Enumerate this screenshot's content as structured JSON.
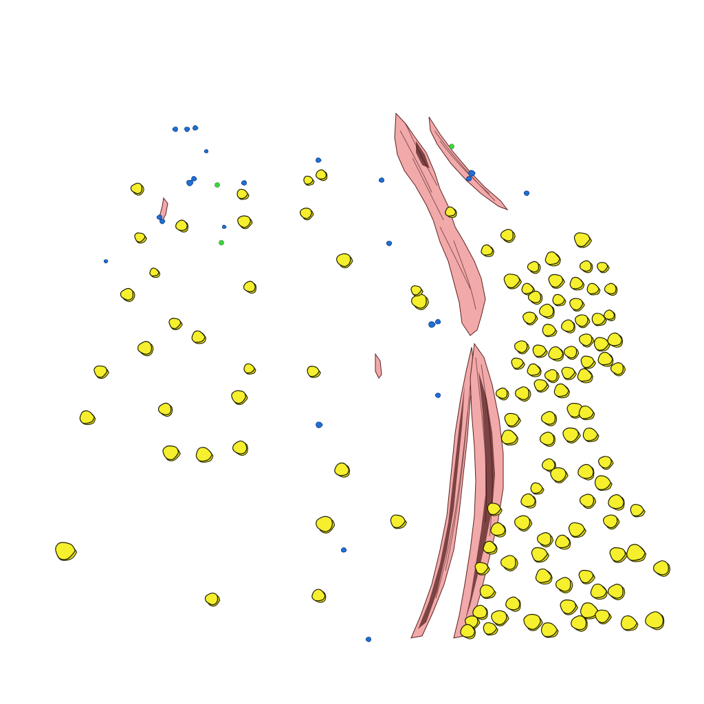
{
  "scene": {
    "background": "#ffffff",
    "colors": {
      "cell_yellow": "#f5ef2e",
      "cell_blue": "#1f6fd6",
      "cell_green": "#3bd63b",
      "fiber_pink": "#f2a9a9",
      "outline": "#1a1a00"
    }
  }
}
